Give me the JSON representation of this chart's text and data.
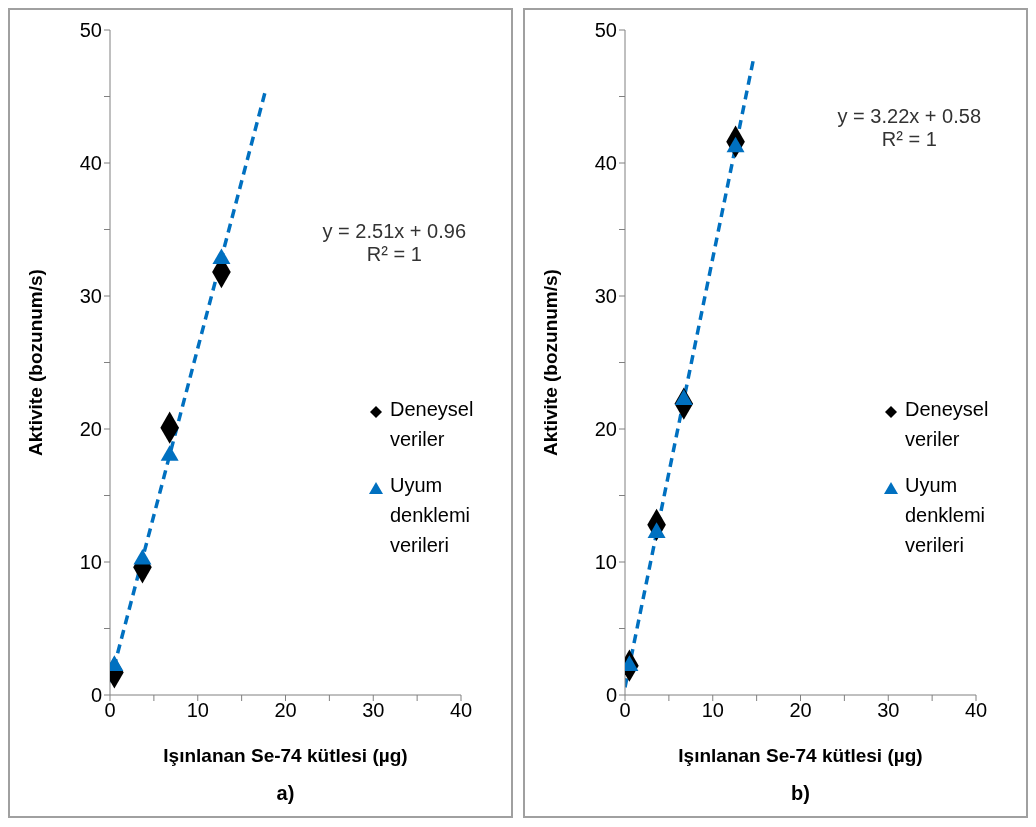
{
  "chart_data": [
    {
      "type": "scatter",
      "xlabel": "Işınlanan Se-74 kütlesi (µg)",
      "ylabel": "Aktivite (bozunum/s)",
      "xlim": [
        0,
        40
      ],
      "ylim": [
        0,
        50
      ],
      "xticks": [
        0,
        {
          "value": 5,
          "label": null
        },
        10,
        {
          "value": 15,
          "label": null
        },
        20,
        {
          "value": 25,
          "label": null
        },
        30,
        {
          "value": 35,
          "label": null
        },
        40
      ],
      "yticks": [
        0,
        {
          "value": 5,
          "label": null
        },
        10,
        {
          "value": 15,
          "label": null
        },
        20,
        {
          "value": 25,
          "label": null
        },
        30,
        {
          "value": 35,
          "label": null
        },
        40,
        {
          "value": 45,
          "label": null
        },
        50
      ],
      "legend": "right",
      "annotations": [
        "y = 2.51x + 0.96",
        "R² = 1",
        "a)"
      ],
      "series": [
        {
          "name": "Deneysel veriler",
          "type": "scatter",
          "marker": "diamond",
          "color": "#000000",
          "x": [
            0.5,
            3.7,
            6.8,
            12.7
          ],
          "values": [
            1.7,
            9.6,
            20.1,
            31.8
          ]
        },
        {
          "name": "Uyum denklemi verileri",
          "type": "scatter",
          "marker": "triangle",
          "color": "#0070c0",
          "x": [
            0.5,
            3.7,
            6.8,
            12.7
          ],
          "values": [
            2.2,
            10.2,
            18.0,
            32.8
          ]
        },
        {
          "type": "line",
          "line_style": "dashed",
          "color": "#0070c0",
          "x": [
            0,
            17.7
          ],
          "values": [
            0.96,
            45.4
          ]
        }
      ]
    },
    {
      "type": "scatter",
      "xlabel": "Işınlanan Se-74 kütlesi (µg)",
      "ylabel": "Aktivite (bozunum/s)",
      "xlim": [
        0,
        40
      ],
      "ylim": [
        0,
        50
      ],
      "xticks": [
        0,
        {
          "value": 5,
          "label": null
        },
        10,
        {
          "value": 15,
          "label": null
        },
        20,
        {
          "value": 25,
          "label": null
        },
        30,
        {
          "value": 35,
          "label": null
        },
        40
      ],
      "yticks": [
        0,
        {
          "value": 5,
          "label": null
        },
        10,
        {
          "value": 15,
          "label": null
        },
        20,
        {
          "value": 25,
          "label": null
        },
        30,
        {
          "value": 35,
          "label": null
        },
        40,
        {
          "value": 45,
          "label": null
        },
        50
      ],
      "legend": "right",
      "annotations": [
        "y = 3.22x + 0.58",
        "R² = 1",
        "b)"
      ],
      "series": [
        {
          "name": "Deneysel veriler",
          "type": "scatter",
          "marker": "diamond",
          "color": "#000000",
          "x": [
            0.5,
            3.6,
            6.7,
            12.6
          ],
          "values": [
            2.2,
            12.8,
            21.9,
            41.6
          ]
        },
        {
          "name": "Uyum denklemi verileri",
          "type": "scatter",
          "marker": "triangle",
          "color": "#0070c0",
          "x": [
            0.5,
            3.6,
            6.7,
            12.6
          ],
          "values": [
            2.2,
            12.2,
            22.2,
            41.2
          ]
        },
        {
          "type": "line",
          "line_style": "dashed",
          "color": "#0070c0",
          "x": [
            0,
            14.7
          ],
          "values": [
            0.58,
            48.0
          ]
        }
      ]
    }
  ]
}
